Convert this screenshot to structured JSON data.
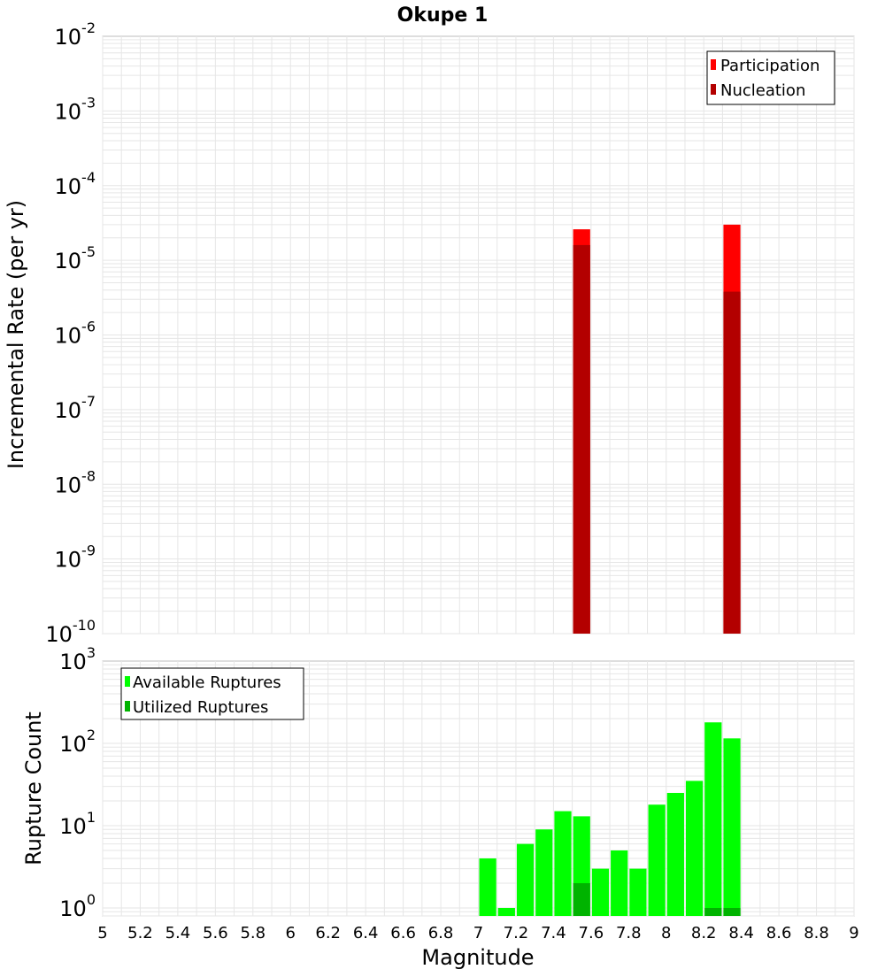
{
  "title": "Okupe 1",
  "chart_data": [
    {
      "type": "bar",
      "name": "rate-panel",
      "ylabel": "Incremental Rate (per yr)",
      "yscale": "log",
      "ylim": [
        1e-10,
        0.01
      ],
      "xlim": [
        5,
        9
      ],
      "bin_width": 0.1,
      "y_ticks": [
        {
          "base": "10",
          "exp": "-10"
        },
        {
          "base": "10",
          "exp": "-9"
        },
        {
          "base": "10",
          "exp": "-8"
        },
        {
          "base": "10",
          "exp": "-7"
        },
        {
          "base": "10",
          "exp": "-6"
        },
        {
          "base": "10",
          "exp": "-5"
        },
        {
          "base": "10",
          "exp": "-4"
        },
        {
          "base": "10",
          "exp": "-3"
        },
        {
          "base": "10",
          "exp": "-2"
        }
      ],
      "grid": true,
      "legend_position": "top-right",
      "series": [
        {
          "name": "Participation",
          "color": "#ff0000",
          "x": [
            7.55,
            8.35
          ],
          "values": [
            2.6e-05,
            3e-05
          ]
        },
        {
          "name": "Nucleation",
          "color": "#b30000",
          "x": [
            7.55,
            8.35
          ],
          "values": [
            1.6e-05,
            3.8e-06
          ]
        }
      ]
    },
    {
      "type": "bar",
      "name": "count-panel",
      "ylabel": "Rupture Count",
      "xlabel": "Magnitude",
      "yscale": "log",
      "ylim": [
        0.8,
        1000
      ],
      "xlim": [
        5,
        9
      ],
      "bin_width": 0.1,
      "y_ticks": [
        {
          "base": "10",
          "exp": "0"
        },
        {
          "base": "10",
          "exp": "1"
        },
        {
          "base": "10",
          "exp": "2"
        },
        {
          "base": "10",
          "exp": "3"
        }
      ],
      "x_ticks": [
        "5",
        "5.2",
        "5.4",
        "5.6",
        "5.8",
        "6",
        "6.2",
        "6.4",
        "6.6",
        "6.8",
        "7",
        "7.2",
        "7.4",
        "7.6",
        "7.8",
        "8",
        "8.2",
        "8.4",
        "8.6",
        "8.8",
        "9"
      ],
      "grid": true,
      "legend_position": "top-left",
      "series": [
        {
          "name": "Available Ruptures",
          "color": "#00ff00",
          "x": [
            7.05,
            7.15,
            7.25,
            7.35,
            7.45,
            7.55,
            7.65,
            7.75,
            7.85,
            7.95,
            8.05,
            8.15,
            8.25,
            8.35
          ],
          "values": [
            4,
            1,
            6,
            9,
            15,
            13,
            3,
            5,
            3,
            18,
            25,
            35,
            180,
            115
          ]
        },
        {
          "name": "Utilized Ruptures",
          "color": "#00b300",
          "x": [
            7.55,
            8.25,
            8.35
          ],
          "values": [
            2,
            1,
            1
          ]
        }
      ]
    }
  ]
}
